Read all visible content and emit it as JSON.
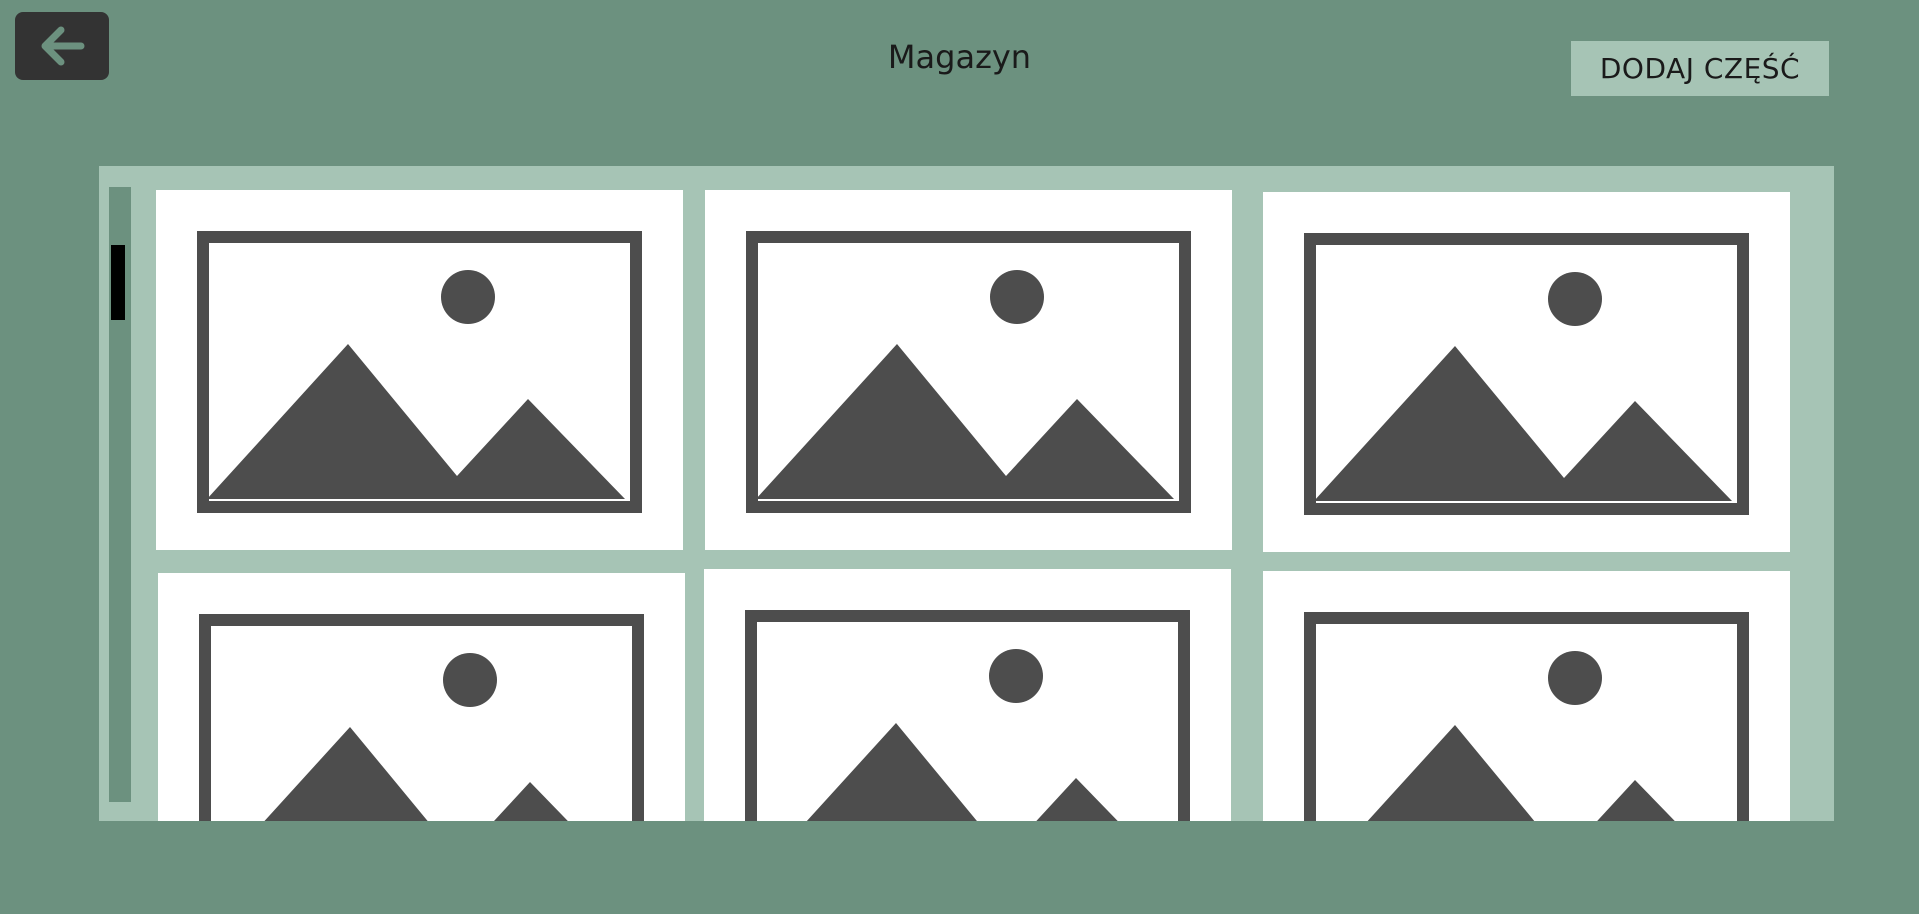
{
  "header": {
    "title": "Magazyn",
    "add_button_label": "DODAJ CZĘŚĆ",
    "back_icon": "arrow-left-icon"
  },
  "grid": {
    "items": [
      {
        "icon": "image-placeholder-icon"
      },
      {
        "icon": "image-placeholder-icon"
      },
      {
        "icon": "image-placeholder-icon"
      },
      {
        "icon": "image-placeholder-icon"
      },
      {
        "icon": "image-placeholder-icon"
      },
      {
        "icon": "image-placeholder-icon"
      }
    ]
  },
  "colors": {
    "background": "#6c917f",
    "panel": "#a6c4b5",
    "button": "#a6c4b5",
    "back_button": "#333333",
    "icon": "#4d4d4d"
  }
}
